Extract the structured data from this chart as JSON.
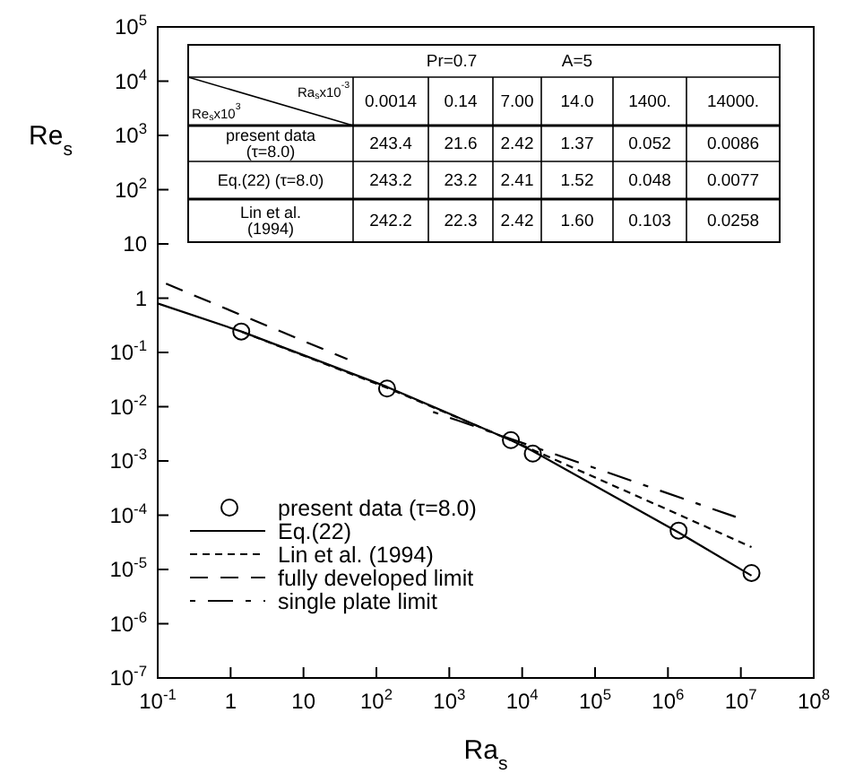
{
  "chart_data": [
    {
      "type": "line",
      "xlabel": "Ra$_{s}$",
      "ylabel": "Re$_{s}$",
      "log": "xy",
      "grid": false,
      "legend": "bottom left",
      "xlim": [
        0.1,
        100000000
      ],
      "ylim": [
        1e-07,
        100000
      ],
      "xticks": [
        {
          "value": 0.1,
          "label": "10$^{-1}$"
        },
        1,
        10,
        {
          "value": 100,
          "label": "10$^{2}$"
        },
        {
          "value": 1000,
          "label": "10$^{3}$"
        },
        {
          "value": 10000,
          "label": "10$^{4}$"
        },
        {
          "value": 100000,
          "label": "10$^{5}$"
        },
        {
          "value": 1000000,
          "label": "10$^{6}$"
        },
        {
          "value": 10000000,
          "label": "10$^{7}$"
        },
        {
          "value": 100000000,
          "label": "10$^{8}$"
        }
      ],
      "yticks": [
        {
          "value": 1e-07,
          "label": "10$^{-7}$"
        },
        {
          "value": 1e-06,
          "label": "10$^{-6}$"
        },
        {
          "value": 1e-05,
          "label": "10$^{-5}$"
        },
        {
          "value": 0.0001,
          "label": "10$^{-4}$"
        },
        {
          "value": 0.001,
          "label": "10$^{-3}$"
        },
        {
          "value": 0.01,
          "label": "10$^{-2}$"
        },
        {
          "value": 0.1,
          "label": "10$^{-1}$"
        },
        1,
        10,
        {
          "value": 100,
          "label": "10$^{2}$"
        },
        {
          "value": 1000,
          "label": "10$^{3}$"
        },
        {
          "value": 10000,
          "label": "10$^{4}$"
        },
        {
          "value": 100000,
          "label": "10$^{5}$"
        }
      ],
      "series": [
        {
          "name": "present data (τ=8.0)",
          "type": "scatter",
          "marker": "circle",
          "color": "#000000",
          "x": [
            1.4,
            140,
            7000,
            14000,
            1400000,
            14000000
          ],
          "values": [
            0.2434,
            0.0216,
            0.00242,
            0.00137,
            5.2e-05,
            8.6e-06
          ]
        },
        {
          "name": "Eq.(22)",
          "type": "line",
          "line_style": "solid",
          "color": "#000000",
          "x": [
            0.1,
            1.4,
            140,
            7000,
            14000,
            1400000,
            14000000
          ],
          "values": [
            0.8,
            0.2432,
            0.0232,
            0.00241,
            0.00152,
            4.8e-05,
            7.7e-06
          ]
        },
        {
          "name": "Lin et al. (1994)",
          "type": "line",
          "line_style": "dashed",
          "color": "#000000",
          "x": [
            1.4,
            140,
            7000,
            14000,
            1400000,
            14000000
          ],
          "values": [
            0.2422,
            0.0223,
            0.00242,
            0.0016,
            0.000103,
            2.58e-05
          ]
        },
        {
          "name": "fully developed limit",
          "type": "line",
          "line_style": "dashed",
          "color": "#000000",
          "x": [
            0.13,
            40
          ],
          "values": [
            1.85,
            0.075
          ]
        },
        {
          "name": "single plate limit",
          "type": "line",
          "line_style": "dashed",
          "color": "#000000",
          "x": [
            600,
            8500000
          ],
          "values": [
            0.008,
            9.3e-05
          ]
        }
      ]
    },
    {
      "type": "other",
      "annotations": [
        "Pr=0.7",
        "A=5",
        "Ra$_{s}$x10$^{-3}$",
        "Re$_{s}$x10$^{3}$",
        "0.0014",
        "0.14",
        "7.00",
        "14.0",
        "1400.",
        "14000.",
        "present data\n(τ=8.0)",
        "Eq.(22) (τ=8.0)",
        "Lin et al.\n(1994)",
        "243.4",
        "21.6",
        "2.42",
        "1.37",
        "0.052",
        "0.0086",
        "243.2",
        "23.2",
        "2.41",
        "1.52",
        "0.048",
        "0.0077",
        "242.2",
        "22.3",
        "2.42",
        "1.60",
        "0.103",
        "0.0258"
      ]
    }
  ]
}
